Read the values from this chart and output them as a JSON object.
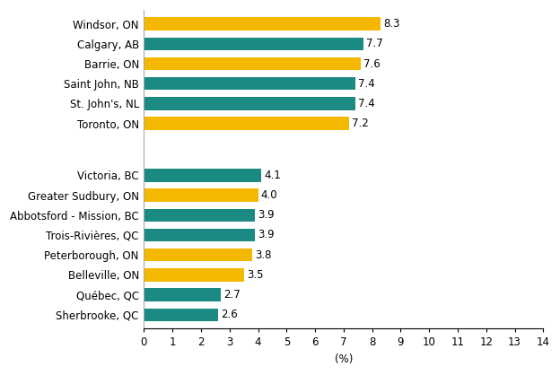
{
  "categories": [
    "Sherbrooke, QC",
    "Québec, QC",
    "Belleville, ON",
    "Peterborough, ON",
    "Trois-Rivières, QC",
    "Abbotsford - Mission, BC",
    "Greater Sudbury, ON",
    "Victoria, BC",
    "",
    "Toronto, ON",
    "St. John's, NL",
    "Saint John, NB",
    "Barrie, ON",
    "Calgary, AB",
    "Windsor, ON"
  ],
  "values": [
    2.6,
    2.7,
    3.5,
    3.8,
    3.9,
    3.9,
    4.0,
    4.1,
    0,
    7.2,
    7.4,
    7.4,
    7.6,
    7.7,
    8.3
  ],
  "colors": [
    "#1b8a82",
    "#1b8a82",
    "#f5b800",
    "#f5b800",
    "#1b8a82",
    "#1b8a82",
    "#f5b800",
    "#1b8a82",
    "#ffffff",
    "#f5b800",
    "#1b8a82",
    "#1b8a82",
    "#f5b800",
    "#1b8a82",
    "#f5b800"
  ],
  "xlim": [
    0,
    14
  ],
  "xticks": [
    0,
    1,
    2,
    3,
    4,
    5,
    6,
    7,
    8,
    9,
    10,
    11,
    12,
    13,
    14
  ],
  "xlabel": "(%)",
  "background_color": "#ffffff",
  "bar_height": 0.65,
  "fontsize": 8.5,
  "label_fontsize": 8.5
}
